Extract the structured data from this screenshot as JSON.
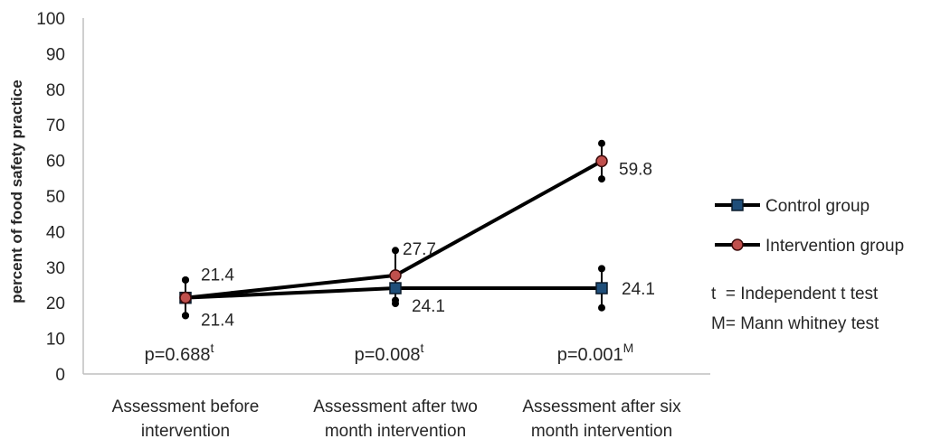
{
  "chart_data": {
    "type": "line",
    "ylabel": "percent of food safety practice",
    "xlabel": "",
    "ylim": [
      0,
      100
    ],
    "yticks": [
      0,
      10,
      20,
      30,
      40,
      50,
      60,
      70,
      80,
      90,
      100
    ],
    "categories": [
      [
        "Assessment before",
        "intervention"
      ],
      [
        "Assessment after two",
        "month intervention"
      ],
      [
        "Assessment after six",
        "month intervention"
      ]
    ],
    "series": [
      {
        "name": "Control group",
        "color": "#000000",
        "marker": "square",
        "marker_color": "#1f4e79",
        "values": [
          21.4,
          24.1,
          24.1
        ],
        "error": [
          5,
          4.3,
          5.5
        ],
        "labels": [
          "21.4",
          "24.1",
          "24.1"
        ]
      },
      {
        "name": "Intervention group",
        "color": "#000000",
        "marker": "circle",
        "marker_color": "#c0504d",
        "values": [
          21.4,
          27.7,
          59.8
        ],
        "error": [
          5,
          7,
          5
        ],
        "labels": [
          "21.4",
          "27.7",
          "59.8"
        ]
      }
    ],
    "p_values": [
      {
        "text": "p=0.688",
        "sup": "t"
      },
      {
        "text": "p=0.008",
        "sup": "t"
      },
      {
        "text": "p=0.001",
        "sup": "M"
      }
    ],
    "notes": [
      "t  = Independent t test",
      "M= Mann whitney test"
    ],
    "grid": false,
    "legend_position": "right"
  }
}
